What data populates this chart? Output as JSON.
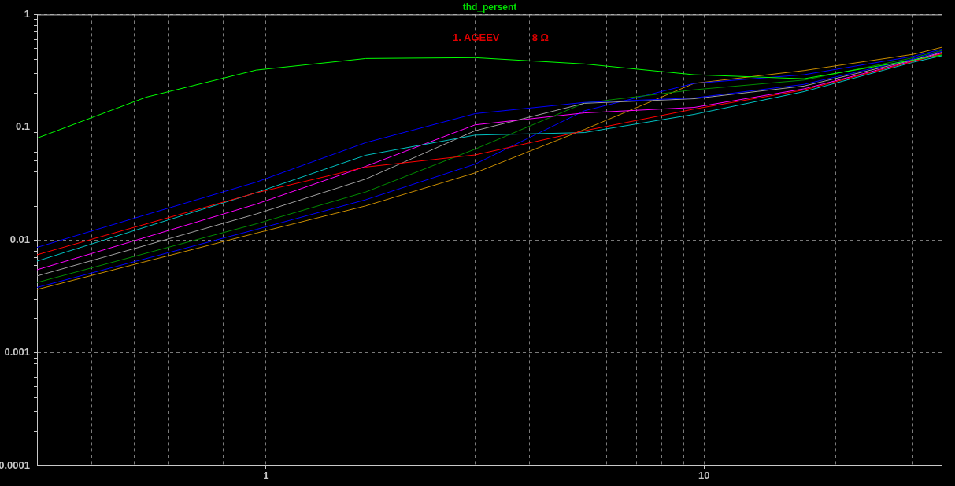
{
  "chart_data": {
    "type": "line",
    "title": "thd_persent",
    "annotations": [
      "1. AGEEV",
      "8 Ω"
    ],
    "log": "xy",
    "grid": true,
    "xlim": [
      0.3,
      35
    ],
    "xticks": [
      {
        "value": 0.4,
        "label": null
      },
      {
        "value": 0.5,
        "label": null
      },
      {
        "value": 0.6,
        "label": null
      },
      {
        "value": 0.7,
        "label": null
      },
      {
        "value": 0.8,
        "label": null
      },
      {
        "value": 0.9,
        "label": null
      },
      1,
      {
        "value": 2,
        "label": null
      },
      {
        "value": 3,
        "label": null
      },
      {
        "value": 4,
        "label": null
      },
      {
        "value": 5,
        "label": null
      },
      {
        "value": 6,
        "label": null
      },
      {
        "value": 7,
        "label": null
      },
      {
        "value": 8,
        "label": null
      },
      {
        "value": 9,
        "label": null
      },
      10,
      {
        "value": 20,
        "label": null
      },
      {
        "value": 30,
        "label": null
      }
    ],
    "ylim": [
      0.0001,
      1
    ],
    "yticks": [
      0.0001,
      {
        "value": 0.0002,
        "label": null
      },
      {
        "value": 0.0003,
        "label": null
      },
      {
        "value": 0.0004,
        "label": null
      },
      {
        "value": 0.0005,
        "label": null
      },
      {
        "value": 0.0006,
        "label": null
      },
      {
        "value": 0.0007,
        "label": null
      },
      {
        "value": 0.0008,
        "label": null
      },
      {
        "value": 0.0009,
        "label": null
      },
      0.001,
      {
        "value": 0.002,
        "label": null
      },
      {
        "value": 0.003,
        "label": null
      },
      {
        "value": 0.004,
        "label": null
      },
      {
        "value": 0.005,
        "label": null
      },
      {
        "value": 0.006,
        "label": null
      },
      {
        "value": 0.007,
        "label": null
      },
      {
        "value": 0.008,
        "label": null
      },
      {
        "value": 0.009,
        "label": null
      },
      0.01,
      {
        "value": 0.02,
        "label": null
      },
      {
        "value": 0.03,
        "label": null
      },
      {
        "value": 0.04,
        "label": null
      },
      {
        "value": 0.05,
        "label": null
      },
      {
        "value": 0.06,
        "label": null
      },
      {
        "value": 0.07,
        "label": null
      },
      {
        "value": 0.08,
        "label": null
      },
      {
        "value": 0.09,
        "label": null
      },
      0.1,
      {
        "value": 0.2,
        "label": null
      },
      {
        "value": 0.3,
        "label": null
      },
      {
        "value": 0.4,
        "label": null
      },
      {
        "value": 0.5,
        "label": null
      },
      {
        "value": 0.6,
        "label": null
      },
      {
        "value": 0.7,
        "label": null
      },
      {
        "value": 0.8,
        "label": null
      },
      {
        "value": 0.9,
        "label": null
      },
      1
    ],
    "x": [
      0.3,
      0.533,
      0.949,
      1.69,
      3,
      5.33,
      9.49,
      16.9,
      30,
      35
    ],
    "series": [
      {
        "color": "#00ff00",
        "values": [
          0.08,
          0.185,
          0.321,
          0.407,
          0.414,
          0.364,
          0.292,
          0.269,
          0.394,
          0.438
        ]
      },
      {
        "color": "#0000ff",
        "values": [
          0.0086,
          0.0168,
          0.0326,
          0.0731,
          0.132,
          0.166,
          0.182,
          0.24,
          0.403,
          0.473
        ]
      },
      {
        "color": "#ff0000",
        "values": [
          0.0074,
          0.0139,
          0.0262,
          0.0444,
          0.0568,
          0.0931,
          0.145,
          0.214,
          0.383,
          0.449
        ]
      },
      {
        "color": "#00c0c0",
        "values": [
          0.0065,
          0.0131,
          0.0263,
          0.0565,
          0.0851,
          0.0897,
          0.13,
          0.207,
          0.377,
          0.431
        ]
      },
      {
        "color": "#ff00ff",
        "values": [
          0.00545,
          0.0106,
          0.0208,
          0.0451,
          0.105,
          0.134,
          0.15,
          0.219,
          0.388,
          0.456
        ]
      },
      {
        "color": "#a0a0a0",
        "values": [
          0.0048,
          0.009,
          0.017,
          0.0348,
          0.0931,
          0.163,
          0.179,
          0.232,
          0.394,
          0.463
        ]
      },
      {
        "color": "#008c00",
        "values": [
          0.0042,
          0.00765,
          0.0139,
          0.0267,
          0.064,
          0.164,
          0.215,
          0.262,
          0.413,
          0.481
        ]
      },
      {
        "color": "#0000ff",
        "values": [
          0.0038,
          0.00686,
          0.0124,
          0.0228,
          0.0471,
          0.14,
          0.245,
          0.292,
          0.425,
          0.494
        ]
      },
      {
        "color": "#c88c00",
        "values": [
          0.00364,
          0.00647,
          0.0115,
          0.0201,
          0.0394,
          0.0955,
          0.245,
          0.318,
          0.443,
          0.513
        ]
      }
    ]
  }
}
